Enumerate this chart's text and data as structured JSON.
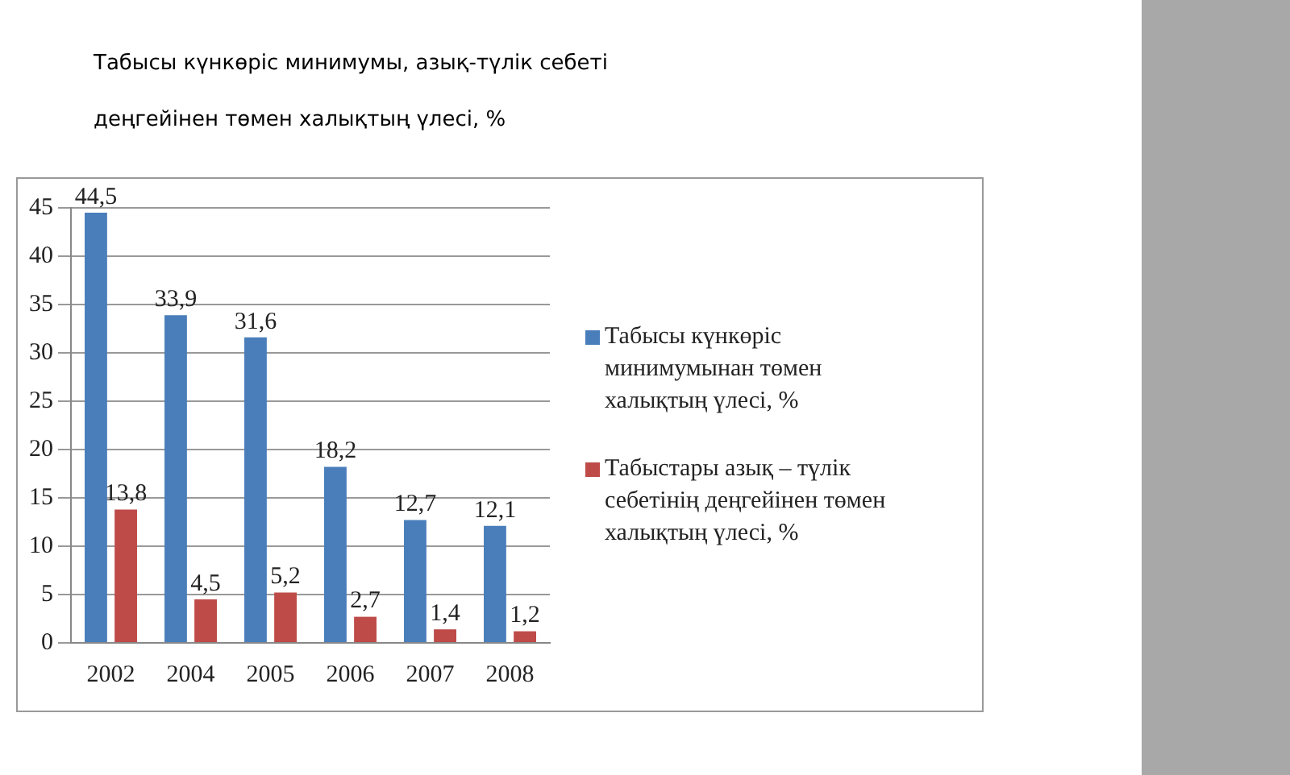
{
  "chart_data": {
    "type": "bar",
    "title": "Табысы күнкөріс минимумы, азық-түлік себеті деңгейінен төмен халықтың үлесі, %",
    "categories": [
      "2002",
      "2004",
      "2005",
      "2006",
      "2007",
      "2008"
    ],
    "series": [
      {
        "name": "Табысы күнкөріс минимумынан төмен халықтың үлесі, %",
        "color": "#4a7ebb",
        "values": [
          44.5,
          33.9,
          31.6,
          18.2,
          12.7,
          12.1
        ],
        "value_labels": [
          "44,5",
          "33,9",
          "31,6",
          "18,2",
          "12,7",
          "12,1"
        ]
      },
      {
        "name": "Табыстары азық – түлік себетінің деңгейінен төмен халықтың үлесі, %",
        "color": "#be4b48",
        "values": [
          13.8,
          4.5,
          5.2,
          2.7,
          1.4,
          1.2
        ],
        "value_labels": [
          "13,8",
          "4,5",
          "5,2",
          "2,7",
          "1,4",
          "1,2"
        ]
      }
    ],
    "ylim": [
      0,
      45
    ],
    "yticks": [
      0,
      5,
      10,
      15,
      20,
      25,
      30,
      35,
      40,
      45
    ],
    "grid": "y",
    "legend": "right"
  }
}
